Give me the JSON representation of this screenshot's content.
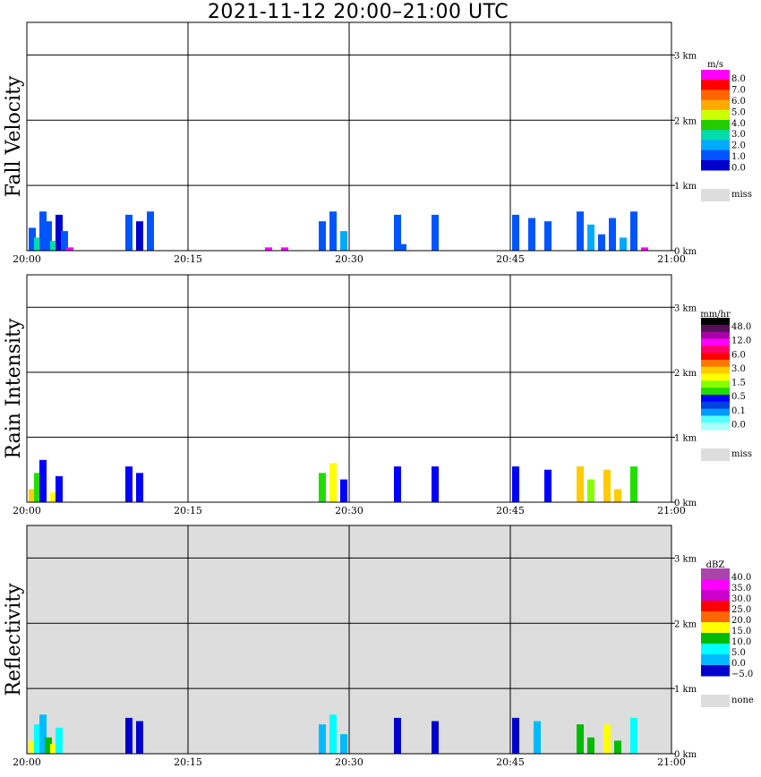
{
  "title": "2021-11-12   20:00–21:00 UTC",
  "chart_data": [
    {
      "type": "heatmap",
      "ylabel": "Fall Velocity",
      "x_ticks": [
        "20:00",
        "20:15",
        "20:30",
        "20:45",
        "21:00"
      ],
      "y_ticks": [
        "0 km",
        "1 km",
        "2 km",
        "3 km"
      ],
      "xlim": [
        "20:00",
        "21:00"
      ],
      "ylim_km": [
        0,
        3.5
      ],
      "grid": true,
      "background": "#ffffff",
      "legend_unit": "m/s",
      "legend_labels": [
        "8.0",
        "7.0",
        "6.0",
        "5.0",
        "4.0",
        "3.0",
        "2.0",
        "1.0",
        "0.0"
      ],
      "legend_colors": [
        "#ff00ff",
        "#ff0000",
        "#ff6600",
        "#ffaa00",
        "#ccff00",
        "#22cc00",
        "#00ddaa",
        "#00aaff",
        "#0055ff",
        "#0000cc"
      ],
      "missing_label": "miss",
      "missing_color": "#dddddd",
      "cells": [
        {
          "t": 0.5,
          "h": 0.35,
          "v": 1.2
        },
        {
          "t": 1.0,
          "h": 0.2,
          "v": 2.4
        },
        {
          "t": 1.5,
          "h": 0.6,
          "v": 0.8
        },
        {
          "t": 2.0,
          "h": 0.45,
          "v": 1.5
        },
        {
          "t": 2.5,
          "h": 0.15,
          "v": 2.8
        },
        {
          "t": 3.0,
          "h": 0.55,
          "v": 0.6
        },
        {
          "t": 3.5,
          "h": 0.3,
          "v": 1.1
        },
        {
          "t": 4.0,
          "h": 0.05,
          "v": 7.5
        },
        {
          "t": 9.5,
          "h": 0.55,
          "v": 0.9
        },
        {
          "t": 10.5,
          "h": 0.45,
          "v": 0.7
        },
        {
          "t": 11.5,
          "h": 0.6,
          "v": 1.0
        },
        {
          "t": 22.5,
          "h": 0.05,
          "v": 8.0
        },
        {
          "t": 24.0,
          "h": 0.05,
          "v": 8.0
        },
        {
          "t": 27.5,
          "h": 0.45,
          "v": 1.2
        },
        {
          "t": 28.5,
          "h": 0.6,
          "v": 0.8
        },
        {
          "t": 29.5,
          "h": 0.3,
          "v": 1.6
        },
        {
          "t": 34.5,
          "h": 0.55,
          "v": 0.9
        },
        {
          "t": 35.0,
          "h": 0.1,
          "v": 1.3
        },
        {
          "t": 38.0,
          "h": 0.55,
          "v": 0.8
        },
        {
          "t": 45.5,
          "h": 0.55,
          "v": 1.0
        },
        {
          "t": 47.0,
          "h": 0.5,
          "v": 1.3
        },
        {
          "t": 48.5,
          "h": 0.45,
          "v": 0.9
        },
        {
          "t": 51.5,
          "h": 0.6,
          "v": 1.1
        },
        {
          "t": 52.5,
          "h": 0.4,
          "v": 1.8
        },
        {
          "t": 53.5,
          "h": 0.25,
          "v": 1.4
        },
        {
          "t": 54.5,
          "h": 0.5,
          "v": 0.9
        },
        {
          "t": 55.5,
          "h": 0.2,
          "v": 1.6
        },
        {
          "t": 56.5,
          "h": 0.6,
          "v": 1.0
        },
        {
          "t": 57.5,
          "h": 0.05,
          "v": 7.8
        }
      ]
    },
    {
      "type": "heatmap",
      "ylabel": "Rain Intensity",
      "x_ticks": [
        "20:00",
        "20:15",
        "20:30",
        "20:45",
        "21:00"
      ],
      "y_ticks": [
        "0 km",
        "1 km",
        "2 km",
        "3 km"
      ],
      "xlim": [
        "20:00",
        "21:00"
      ],
      "ylim_km": [
        0,
        3.5
      ],
      "grid": true,
      "background": "#ffffff",
      "legend_unit": "mm/hr",
      "legend_labels": [
        "48.0",
        "12.0",
        "6.0",
        "3.0",
        "1.5",
        "0.5",
        "0.1",
        "0.0"
      ],
      "legend_colors": [
        "#000000",
        "#551155",
        "#aa00aa",
        "#ff00ff",
        "#ff0066",
        "#ff0000",
        "#ff7700",
        "#ffcc00",
        "#ffff00",
        "#88ff00",
        "#22dd00",
        "#0000ff",
        "#0044dd",
        "#0099ff",
        "#55ffff",
        "#aaffff"
      ],
      "missing_label": "miss",
      "missing_color": "#dddddd",
      "cells": [
        {
          "t": 0.5,
          "h": 0.2,
          "r": 0.8
        },
        {
          "t": 1.0,
          "h": 0.45,
          "r": 0.2
        },
        {
          "t": 1.5,
          "h": 0.65,
          "r": 0.1
        },
        {
          "t": 2.5,
          "h": 0.15,
          "r": 0.6
        },
        {
          "t": 3.0,
          "h": 0.4,
          "r": 0.12
        },
        {
          "t": 9.5,
          "h": 0.55,
          "r": 0.1
        },
        {
          "t": 10.5,
          "h": 0.45,
          "r": 0.1
        },
        {
          "t": 27.5,
          "h": 0.45,
          "r": 0.15
        },
        {
          "t": 28.5,
          "h": 0.6,
          "r": 0.4
        },
        {
          "t": 29.5,
          "h": 0.35,
          "r": 0.1
        },
        {
          "t": 34.5,
          "h": 0.55,
          "r": 0.1
        },
        {
          "t": 38.0,
          "h": 0.55,
          "r": 0.1
        },
        {
          "t": 45.5,
          "h": 0.55,
          "r": 0.1
        },
        {
          "t": 48.5,
          "h": 0.5,
          "r": 0.1
        },
        {
          "t": 51.5,
          "h": 0.55,
          "r": 0.8
        },
        {
          "t": 52.5,
          "h": 0.35,
          "r": 0.3
        },
        {
          "t": 54.0,
          "h": 0.5,
          "r": 1.0
        },
        {
          "t": 55.0,
          "h": 0.2,
          "r": 0.7
        },
        {
          "t": 56.5,
          "h": 0.55,
          "r": 0.2
        }
      ]
    },
    {
      "type": "heatmap",
      "ylabel": "Reflectivity",
      "x_ticks": [
        "20:00",
        "20:15",
        "20:30",
        "20:45",
        "21:00"
      ],
      "y_ticks": [
        "0 km",
        "1 km",
        "2 km",
        "3 km"
      ],
      "xlim": [
        "20:00",
        "21:00"
      ],
      "ylim_km": [
        0,
        3.5
      ],
      "grid": true,
      "background": "#dddddd",
      "legend_unit": "dBZ",
      "legend_labels": [
        "40.0",
        "35.0",
        "30.0",
        "25.0",
        "20.0",
        "15.0",
        "10.0",
        "5.0",
        "0.0",
        "−5.0"
      ],
      "legend_colors": [
        "#aa44aa",
        "#ff00ff",
        "#cc00cc",
        "#ff0000",
        "#ff6600",
        "#ffff00",
        "#00bb00",
        "#00ffff",
        "#00bbff",
        "#0000cc"
      ],
      "missing_label": "none",
      "missing_color": "#dddddd",
      "cells": [
        {
          "t": 0.5,
          "h": 0.2,
          "z": 14
        },
        {
          "t": 1.0,
          "h": 0.45,
          "z": 6
        },
        {
          "t": 1.5,
          "h": 0.6,
          "z": 1
        },
        {
          "t": 2.0,
          "h": 0.25,
          "z": 12
        },
        {
          "t": 2.5,
          "h": 0.15,
          "z": 16
        },
        {
          "t": 3.0,
          "h": 0.4,
          "z": 4
        },
        {
          "t": 9.5,
          "h": 0.55,
          "z": -3
        },
        {
          "t": 10.5,
          "h": 0.5,
          "z": -2
        },
        {
          "t": 27.5,
          "h": 0.45,
          "z": 2
        },
        {
          "t": 28.5,
          "h": 0.6,
          "z": 5
        },
        {
          "t": 29.5,
          "h": 0.3,
          "z": 1
        },
        {
          "t": 34.5,
          "h": 0.55,
          "z": -2
        },
        {
          "t": 38.0,
          "h": 0.5,
          "z": -3
        },
        {
          "t": 45.5,
          "h": 0.55,
          "z": -1
        },
        {
          "t": 47.5,
          "h": 0.5,
          "z": 0
        },
        {
          "t": 51.5,
          "h": 0.45,
          "z": 12
        },
        {
          "t": 52.5,
          "h": 0.25,
          "z": 9
        },
        {
          "t": 54.0,
          "h": 0.45,
          "z": 14
        },
        {
          "t": 55.0,
          "h": 0.2,
          "z": 10
        },
        {
          "t": 56.5,
          "h": 0.55,
          "z": 4
        }
      ]
    }
  ]
}
